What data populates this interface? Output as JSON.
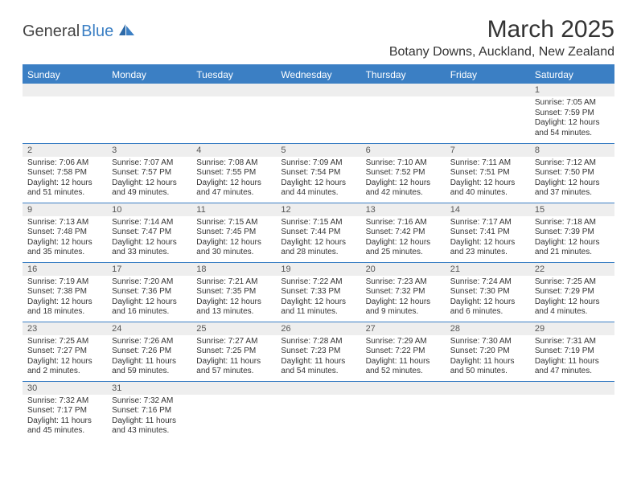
{
  "logo": {
    "word1": "General",
    "word2": "Blue"
  },
  "title": "March 2025",
  "location": "Botany Downs, Auckland, New Zealand",
  "colors": {
    "accent": "#3b7fc4",
    "header_bg": "#3b7fc4",
    "header_text": "#ffffff",
    "daynum_bg": "#eeeeee"
  },
  "weekdays": [
    "Sunday",
    "Monday",
    "Tuesday",
    "Wednesday",
    "Thursday",
    "Friday",
    "Saturday"
  ],
  "weeks": [
    [
      {
        "blank": true
      },
      {
        "blank": true
      },
      {
        "blank": true
      },
      {
        "blank": true
      },
      {
        "blank": true
      },
      {
        "blank": true
      },
      {
        "day": "1",
        "sunrise": "Sunrise: 7:05 AM",
        "sunset": "Sunset: 7:59 PM",
        "day1": "Daylight: 12 hours",
        "day2": "and 54 minutes."
      }
    ],
    [
      {
        "day": "2",
        "sunrise": "Sunrise: 7:06 AM",
        "sunset": "Sunset: 7:58 PM",
        "day1": "Daylight: 12 hours",
        "day2": "and 51 minutes."
      },
      {
        "day": "3",
        "sunrise": "Sunrise: 7:07 AM",
        "sunset": "Sunset: 7:57 PM",
        "day1": "Daylight: 12 hours",
        "day2": "and 49 minutes."
      },
      {
        "day": "4",
        "sunrise": "Sunrise: 7:08 AM",
        "sunset": "Sunset: 7:55 PM",
        "day1": "Daylight: 12 hours",
        "day2": "and 47 minutes."
      },
      {
        "day": "5",
        "sunrise": "Sunrise: 7:09 AM",
        "sunset": "Sunset: 7:54 PM",
        "day1": "Daylight: 12 hours",
        "day2": "and 44 minutes."
      },
      {
        "day": "6",
        "sunrise": "Sunrise: 7:10 AM",
        "sunset": "Sunset: 7:52 PM",
        "day1": "Daylight: 12 hours",
        "day2": "and 42 minutes."
      },
      {
        "day": "7",
        "sunrise": "Sunrise: 7:11 AM",
        "sunset": "Sunset: 7:51 PM",
        "day1": "Daylight: 12 hours",
        "day2": "and 40 minutes."
      },
      {
        "day": "8",
        "sunrise": "Sunrise: 7:12 AM",
        "sunset": "Sunset: 7:50 PM",
        "day1": "Daylight: 12 hours",
        "day2": "and 37 minutes."
      }
    ],
    [
      {
        "day": "9",
        "sunrise": "Sunrise: 7:13 AM",
        "sunset": "Sunset: 7:48 PM",
        "day1": "Daylight: 12 hours",
        "day2": "and 35 minutes."
      },
      {
        "day": "10",
        "sunrise": "Sunrise: 7:14 AM",
        "sunset": "Sunset: 7:47 PM",
        "day1": "Daylight: 12 hours",
        "day2": "and 33 minutes."
      },
      {
        "day": "11",
        "sunrise": "Sunrise: 7:15 AM",
        "sunset": "Sunset: 7:45 PM",
        "day1": "Daylight: 12 hours",
        "day2": "and 30 minutes."
      },
      {
        "day": "12",
        "sunrise": "Sunrise: 7:15 AM",
        "sunset": "Sunset: 7:44 PM",
        "day1": "Daylight: 12 hours",
        "day2": "and 28 minutes."
      },
      {
        "day": "13",
        "sunrise": "Sunrise: 7:16 AM",
        "sunset": "Sunset: 7:42 PM",
        "day1": "Daylight: 12 hours",
        "day2": "and 25 minutes."
      },
      {
        "day": "14",
        "sunrise": "Sunrise: 7:17 AM",
        "sunset": "Sunset: 7:41 PM",
        "day1": "Daylight: 12 hours",
        "day2": "and 23 minutes."
      },
      {
        "day": "15",
        "sunrise": "Sunrise: 7:18 AM",
        "sunset": "Sunset: 7:39 PM",
        "day1": "Daylight: 12 hours",
        "day2": "and 21 minutes."
      }
    ],
    [
      {
        "day": "16",
        "sunrise": "Sunrise: 7:19 AM",
        "sunset": "Sunset: 7:38 PM",
        "day1": "Daylight: 12 hours",
        "day2": "and 18 minutes."
      },
      {
        "day": "17",
        "sunrise": "Sunrise: 7:20 AM",
        "sunset": "Sunset: 7:36 PM",
        "day1": "Daylight: 12 hours",
        "day2": "and 16 minutes."
      },
      {
        "day": "18",
        "sunrise": "Sunrise: 7:21 AM",
        "sunset": "Sunset: 7:35 PM",
        "day1": "Daylight: 12 hours",
        "day2": "and 13 minutes."
      },
      {
        "day": "19",
        "sunrise": "Sunrise: 7:22 AM",
        "sunset": "Sunset: 7:33 PM",
        "day1": "Daylight: 12 hours",
        "day2": "and 11 minutes."
      },
      {
        "day": "20",
        "sunrise": "Sunrise: 7:23 AM",
        "sunset": "Sunset: 7:32 PM",
        "day1": "Daylight: 12 hours",
        "day2": "and 9 minutes."
      },
      {
        "day": "21",
        "sunrise": "Sunrise: 7:24 AM",
        "sunset": "Sunset: 7:30 PM",
        "day1": "Daylight: 12 hours",
        "day2": "and 6 minutes."
      },
      {
        "day": "22",
        "sunrise": "Sunrise: 7:25 AM",
        "sunset": "Sunset: 7:29 PM",
        "day1": "Daylight: 12 hours",
        "day2": "and 4 minutes."
      }
    ],
    [
      {
        "day": "23",
        "sunrise": "Sunrise: 7:25 AM",
        "sunset": "Sunset: 7:27 PM",
        "day1": "Daylight: 12 hours",
        "day2": "and 2 minutes."
      },
      {
        "day": "24",
        "sunrise": "Sunrise: 7:26 AM",
        "sunset": "Sunset: 7:26 PM",
        "day1": "Daylight: 11 hours",
        "day2": "and 59 minutes."
      },
      {
        "day": "25",
        "sunrise": "Sunrise: 7:27 AM",
        "sunset": "Sunset: 7:25 PM",
        "day1": "Daylight: 11 hours",
        "day2": "and 57 minutes."
      },
      {
        "day": "26",
        "sunrise": "Sunrise: 7:28 AM",
        "sunset": "Sunset: 7:23 PM",
        "day1": "Daylight: 11 hours",
        "day2": "and 54 minutes."
      },
      {
        "day": "27",
        "sunrise": "Sunrise: 7:29 AM",
        "sunset": "Sunset: 7:22 PM",
        "day1": "Daylight: 11 hours",
        "day2": "and 52 minutes."
      },
      {
        "day": "28",
        "sunrise": "Sunrise: 7:30 AM",
        "sunset": "Sunset: 7:20 PM",
        "day1": "Daylight: 11 hours",
        "day2": "and 50 minutes."
      },
      {
        "day": "29",
        "sunrise": "Sunrise: 7:31 AM",
        "sunset": "Sunset: 7:19 PM",
        "day1": "Daylight: 11 hours",
        "day2": "and 47 minutes."
      }
    ],
    [
      {
        "day": "30",
        "sunrise": "Sunrise: 7:32 AM",
        "sunset": "Sunset: 7:17 PM",
        "day1": "Daylight: 11 hours",
        "day2": "and 45 minutes."
      },
      {
        "day": "31",
        "sunrise": "Sunrise: 7:32 AM",
        "sunset": "Sunset: 7:16 PM",
        "day1": "Daylight: 11 hours",
        "day2": "and 43 minutes."
      },
      {
        "blank": true
      },
      {
        "blank": true
      },
      {
        "blank": true
      },
      {
        "blank": true
      },
      {
        "blank": true
      }
    ]
  ]
}
